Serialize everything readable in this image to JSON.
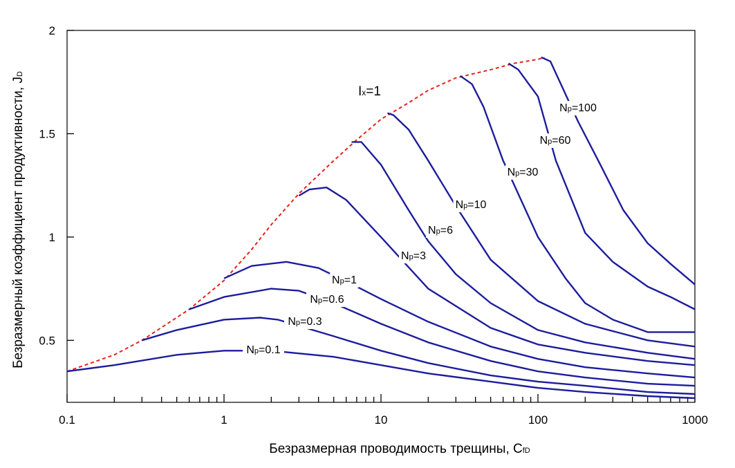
{
  "chart_data": {
    "type": "line",
    "xscale": "log",
    "xlim": [
      0.1,
      1000
    ],
    "ylim": [
      0.2,
      2
    ],
    "xticks": [
      "0.1",
      "1",
      "10",
      "100",
      "1000"
    ],
    "yticks": [
      "0.5",
      "1",
      "1.5",
      "2"
    ],
    "xlabel": {
      "main": "Безразмерная проводимость трещины, C",
      "sub": "fD"
    },
    "ylabel": {
      "main": "Безразмерный коэффициент продуктивности, J",
      "sub": "D"
    },
    "envelope": {
      "label": {
        "main": "I",
        "sub": "x",
        "tail": "=1"
      },
      "color": "#e8201c",
      "x": [
        0.1,
        0.2,
        0.3,
        0.6,
        1,
        1.5,
        2,
        3,
        5,
        7,
        10,
        15,
        20,
        30,
        50,
        70,
        100,
        110
      ],
      "y": [
        0.35,
        0.43,
        0.5,
        0.65,
        0.79,
        0.94,
        1.06,
        1.21,
        1.37,
        1.47,
        1.57,
        1.65,
        1.71,
        1.77,
        1.81,
        1.84,
        1.86,
        1.87
      ]
    },
    "series_color": "#1c1c9c",
    "series": [
      {
        "name": "Np=0.1",
        "label": {
          "main": "N",
          "sub": "p",
          "tail": "=0.1"
        },
        "x": [
          0.1,
          0.2,
          0.5,
          1,
          2,
          5,
          10,
          20,
          50,
          100,
          200,
          500,
          1000
        ],
        "y": [
          0.35,
          0.38,
          0.43,
          0.45,
          0.45,
          0.42,
          0.38,
          0.34,
          0.3,
          0.27,
          0.25,
          0.23,
          0.22
        ]
      },
      {
        "name": "Np=0.3",
        "label": {
          "main": "N",
          "sub": "p",
          "tail": "=0.3"
        },
        "x": [
          0.3,
          0.5,
          1,
          1.7,
          2.2,
          3,
          5,
          10,
          20,
          50,
          100,
          200,
          500,
          1000
        ],
        "y": [
          0.5,
          0.55,
          0.6,
          0.61,
          0.6,
          0.57,
          0.52,
          0.45,
          0.39,
          0.33,
          0.3,
          0.28,
          0.25,
          0.24
        ]
      },
      {
        "name": "Np=0.6",
        "label": {
          "main": "N",
          "sub": "p",
          "tail": "=0.6"
        },
        "x": [
          0.6,
          1,
          2,
          3,
          5,
          10,
          20,
          50,
          100,
          200,
          500,
          1000
        ],
        "y": [
          0.65,
          0.71,
          0.75,
          0.74,
          0.68,
          0.58,
          0.49,
          0.4,
          0.35,
          0.32,
          0.29,
          0.28
        ]
      },
      {
        "name": "Np=1",
        "label": {
          "main": "N",
          "sub": "p",
          "tail": "=1"
        },
        "x": [
          1,
          1.5,
          2.5,
          4,
          7,
          10,
          20,
          50,
          100,
          200,
          500,
          1000
        ],
        "y": [
          0.8,
          0.86,
          0.88,
          0.85,
          0.76,
          0.7,
          0.59,
          0.47,
          0.41,
          0.37,
          0.34,
          0.32
        ]
      },
      {
        "name": "Np=3",
        "label": {
          "main": "N",
          "sub": "p",
          "tail": "=3"
        },
        "x": [
          3,
          3.5,
          4.5,
          6,
          10,
          20,
          50,
          100,
          200,
          500,
          1000
        ],
        "y": [
          1.2,
          1.23,
          1.24,
          1.18,
          1.0,
          0.75,
          0.56,
          0.48,
          0.44,
          0.4,
          0.38
        ]
      },
      {
        "name": "Np=6",
        "label": {
          "main": "N",
          "sub": "p",
          "tail": "=6"
        },
        "x": [
          6.5,
          7.5,
          10,
          15,
          20,
          30,
          50,
          100,
          200,
          500,
          1000
        ],
        "y": [
          1.46,
          1.46,
          1.35,
          1.13,
          0.98,
          0.82,
          0.68,
          0.55,
          0.49,
          0.44,
          0.41
        ]
      },
      {
        "name": "Np=10",
        "label": {
          "main": "N",
          "sub": "p",
          "tail": "=10"
        },
        "x": [
          11,
          12,
          15,
          20,
          30,
          50,
          100,
          200,
          500,
          1000
        ],
        "y": [
          1.6,
          1.59,
          1.52,
          1.37,
          1.15,
          0.89,
          0.69,
          0.58,
          0.5,
          0.47
        ]
      },
      {
        "name": "Np=30",
        "label": {
          "main": "N",
          "sub": "p",
          "tail": "=30"
        },
        "x": [
          32,
          38,
          45,
          60,
          100,
          150,
          200,
          300,
          500,
          1000
        ],
        "y": [
          1.78,
          1.74,
          1.63,
          1.37,
          1.0,
          0.8,
          0.68,
          0.6,
          0.54,
          0.54
        ]
      },
      {
        "name": "Np=60",
        "label": {
          "main": "N",
          "sub": "p",
          "tail": "=60"
        },
        "x": [
          65,
          75,
          100,
          130,
          200,
          300,
          500,
          700,
          1000
        ],
        "y": [
          1.84,
          1.81,
          1.68,
          1.37,
          1.02,
          0.88,
          0.76,
          0.71,
          0.65
        ]
      },
      {
        "name": "Np=100",
        "label": {
          "main": "N",
          "sub": "p",
          "tail": "=100"
        },
        "x": [
          105,
          120,
          140,
          180,
          250,
          350,
          500,
          700,
          1000
        ],
        "y": [
          1.87,
          1.85,
          1.74,
          1.56,
          1.35,
          1.13,
          0.97,
          0.87,
          0.77
        ]
      }
    ]
  }
}
